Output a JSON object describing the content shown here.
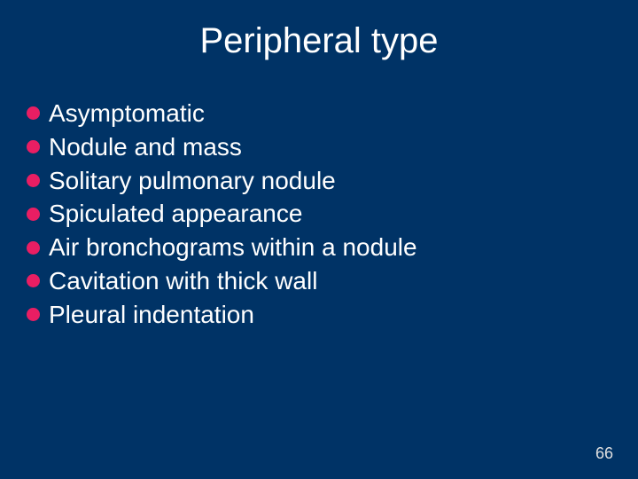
{
  "slide": {
    "title": "Peripheral type",
    "title_fontsize": 40,
    "title_color": "#ffffff",
    "background_color": "#003366",
    "bullet_color": "#e91e63",
    "text_color": "#ffffff",
    "bullet_fontsize": 28,
    "bullets": [
      "Asymptomatic",
      "Nodule and mass",
      "Solitary pulmonary nodule",
      "Spiculated appearance",
      "Air bronchograms within a nodule",
      "Cavitation with thick wall",
      "Pleural indentation"
    ],
    "page_number": "66",
    "page_number_color": "#e0e0e0",
    "page_number_fontsize": 18
  }
}
